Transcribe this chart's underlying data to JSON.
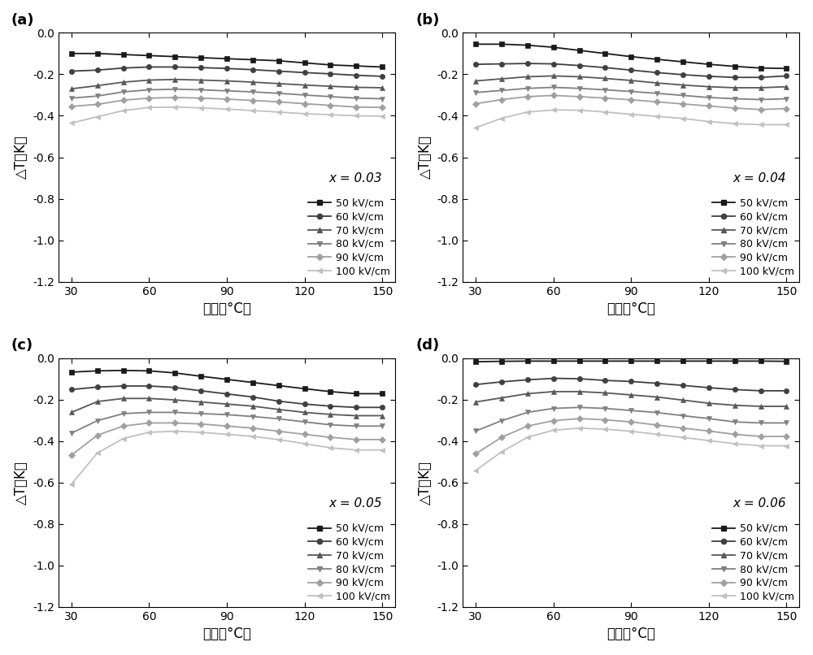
{
  "x_ticks": [
    30,
    60,
    90,
    120,
    150
  ],
  "x_values": [
    30,
    40,
    50,
    60,
    70,
    80,
    90,
    100,
    110,
    120,
    130,
    140,
    150
  ],
  "ylim": [
    -1.2,
    0.0
  ],
  "xlim": [
    25,
    155
  ],
  "xlabel": "温度（°C）",
  "ylabel": "△T（K）",
  "panels": [
    {
      "label": "(a)",
      "x_label": "x = 0.03",
      "series": {
        "50": [
          -0.1,
          -0.1,
          -0.105,
          -0.11,
          -0.115,
          -0.12,
          -0.125,
          -0.13,
          -0.135,
          -0.145,
          -0.155,
          -0.16,
          -0.165
        ],
        "60": [
          -0.185,
          -0.18,
          -0.17,
          -0.165,
          -0.165,
          -0.168,
          -0.172,
          -0.178,
          -0.185,
          -0.192,
          -0.198,
          -0.205,
          -0.21
        ],
        "70": [
          -0.27,
          -0.255,
          -0.238,
          -0.228,
          -0.225,
          -0.228,
          -0.232,
          -0.238,
          -0.245,
          -0.252,
          -0.258,
          -0.263,
          -0.265
        ],
        "80": [
          -0.315,
          -0.305,
          -0.285,
          -0.275,
          -0.272,
          -0.275,
          -0.28,
          -0.285,
          -0.292,
          -0.3,
          -0.308,
          -0.315,
          -0.318
        ],
        "90": [
          -0.355,
          -0.345,
          -0.325,
          -0.315,
          -0.312,
          -0.315,
          -0.32,
          -0.326,
          -0.333,
          -0.342,
          -0.35,
          -0.358,
          -0.36
        ],
        "100": [
          -0.435,
          -0.405,
          -0.375,
          -0.36,
          -0.358,
          -0.362,
          -0.368,
          -0.375,
          -0.382,
          -0.39,
          -0.395,
          -0.4,
          -0.402
        ]
      }
    },
    {
      "label": "(b)",
      "x_label": "x = 0.04",
      "series": {
        "50": [
          -0.055,
          -0.055,
          -0.06,
          -0.07,
          -0.085,
          -0.1,
          -0.115,
          -0.128,
          -0.14,
          -0.152,
          -0.162,
          -0.17,
          -0.172
        ],
        "60": [
          -0.152,
          -0.15,
          -0.148,
          -0.15,
          -0.158,
          -0.168,
          -0.18,
          -0.192,
          -0.202,
          -0.21,
          -0.215,
          -0.215,
          -0.208
        ],
        "70": [
          -0.232,
          -0.222,
          -0.212,
          -0.208,
          -0.212,
          -0.22,
          -0.23,
          -0.242,
          -0.252,
          -0.26,
          -0.265,
          -0.265,
          -0.26
        ],
        "80": [
          -0.288,
          -0.278,
          -0.268,
          -0.263,
          -0.268,
          -0.275,
          -0.283,
          -0.292,
          -0.302,
          -0.312,
          -0.318,
          -0.322,
          -0.318
        ],
        "90": [
          -0.342,
          -0.322,
          -0.308,
          -0.302,
          -0.308,
          -0.315,
          -0.323,
          -0.333,
          -0.343,
          -0.353,
          -0.363,
          -0.37,
          -0.365
        ],
        "100": [
          -0.458,
          -0.412,
          -0.382,
          -0.372,
          -0.373,
          -0.382,
          -0.393,
          -0.403,
          -0.413,
          -0.428,
          -0.438,
          -0.443,
          -0.443
        ]
      }
    },
    {
      "label": "(c)",
      "x_label": "x = 0.05",
      "series": {
        "50": [
          -0.068,
          -0.062,
          -0.06,
          -0.062,
          -0.072,
          -0.088,
          -0.103,
          -0.118,
          -0.133,
          -0.148,
          -0.162,
          -0.172,
          -0.172
        ],
        "60": [
          -0.152,
          -0.14,
          -0.135,
          -0.135,
          -0.142,
          -0.158,
          -0.173,
          -0.188,
          -0.208,
          -0.222,
          -0.232,
          -0.238,
          -0.238
        ],
        "70": [
          -0.262,
          -0.21,
          -0.195,
          -0.195,
          -0.202,
          -0.212,
          -0.222,
          -0.232,
          -0.248,
          -0.262,
          -0.272,
          -0.278,
          -0.278
        ],
        "80": [
          -0.362,
          -0.302,
          -0.268,
          -0.262,
          -0.262,
          -0.268,
          -0.273,
          -0.282,
          -0.293,
          -0.308,
          -0.322,
          -0.328,
          -0.328
        ],
        "90": [
          -0.468,
          -0.372,
          -0.328,
          -0.313,
          -0.313,
          -0.318,
          -0.328,
          -0.338,
          -0.353,
          -0.368,
          -0.382,
          -0.393,
          -0.393
        ],
        "100": [
          -0.608,
          -0.458,
          -0.388,
          -0.358,
          -0.353,
          -0.358,
          -0.368,
          -0.378,
          -0.393,
          -0.413,
          -0.433,
          -0.443,
          -0.443
        ]
      }
    },
    {
      "label": "(d)",
      "x_label": "x = 0.06",
      "series": {
        "50": [
          -0.018,
          -0.016,
          -0.015,
          -0.015,
          -0.015,
          -0.015,
          -0.015,
          -0.015,
          -0.015,
          -0.015,
          -0.015,
          -0.015,
          -0.016
        ],
        "60": [
          -0.128,
          -0.115,
          -0.105,
          -0.098,
          -0.1,
          -0.108,
          -0.113,
          -0.122,
          -0.132,
          -0.143,
          -0.152,
          -0.158,
          -0.158
        ],
        "70": [
          -0.212,
          -0.192,
          -0.172,
          -0.162,
          -0.162,
          -0.168,
          -0.178,
          -0.188,
          -0.203,
          -0.218,
          -0.228,
          -0.233,
          -0.233
        ],
        "80": [
          -0.352,
          -0.302,
          -0.262,
          -0.243,
          -0.238,
          -0.243,
          -0.253,
          -0.263,
          -0.278,
          -0.292,
          -0.308,
          -0.313,
          -0.313
        ],
        "90": [
          -0.462,
          -0.382,
          -0.328,
          -0.302,
          -0.292,
          -0.298,
          -0.308,
          -0.323,
          -0.338,
          -0.352,
          -0.368,
          -0.378,
          -0.378
        ],
        "100": [
          -0.542,
          -0.452,
          -0.382,
          -0.348,
          -0.338,
          -0.343,
          -0.353,
          -0.368,
          -0.383,
          -0.398,
          -0.413,
          -0.423,
          -0.423
        ]
      }
    }
  ],
  "series_styles": {
    "50": {
      "color": "#1a1a1a",
      "marker": "s",
      "linestyle": "-"
    },
    "60": {
      "color": "#404040",
      "marker": "o",
      "linestyle": "-"
    },
    "70": {
      "color": "#585858",
      "marker": "^",
      "linestyle": "-"
    },
    "80": {
      "color": "#808080",
      "marker": "v",
      "linestyle": "-"
    },
    "90": {
      "color": "#a0a0a0",
      "marker": "D",
      "linestyle": "-"
    },
    "100": {
      "color": "#c0c0c0",
      "marker": "<",
      "linestyle": "-"
    }
  },
  "legend_labels": [
    "50 kV/cm",
    "60 kV/cm",
    "70 kV/cm",
    "80 kV/cm",
    "90 kV/cm",
    "100 kV/cm"
  ],
  "legend_series_keys": [
    "50",
    "60",
    "70",
    "80",
    "90",
    "100"
  ]
}
